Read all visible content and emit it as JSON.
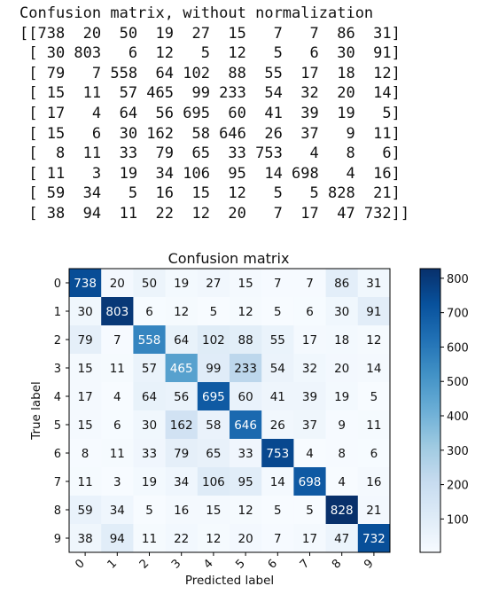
{
  "console": {
    "header": "Confusion matrix, without normalization",
    "lines": [
      "[[738  20  50  19  27  15   7   7  86  31]",
      " [ 30 803   6  12   5  12   5   6  30  91]",
      " [ 79   7 558  64 102  88  55  17  18  12]",
      " [ 15  11  57 465  99 233  54  32  20  14]",
      " [ 17   4  64  56 695  60  41  39  19   5]",
      " [ 15   6  30 162  58 646  26  37   9  11]",
      " [  8  11  33  79  65  33 753   4   8   6]",
      " [ 11   3  19  34 106  95  14 698   4  16]",
      " [ 59  34   5  16  15  12   5   5 828  21]",
      " [ 38  94  11  22  12  20   7  17  47 732]]"
    ]
  },
  "chart_data": {
    "type": "heatmap",
    "title": "Confusion matrix",
    "xlabel": "Predicted label",
    "ylabel": "True label",
    "x_categories": [
      "0",
      "1",
      "2",
      "3",
      "4",
      "5",
      "6",
      "7",
      "8",
      "9"
    ],
    "y_categories": [
      "0",
      "1",
      "2",
      "3",
      "4",
      "5",
      "6",
      "7",
      "8",
      "9"
    ],
    "values": [
      [
        738,
        20,
        50,
        19,
        27,
        15,
        7,
        7,
        86,
        31
      ],
      [
        30,
        803,
        6,
        12,
        5,
        12,
        5,
        6,
        30,
        91
      ],
      [
        79,
        7,
        558,
        64,
        102,
        88,
        55,
        17,
        18,
        12
      ],
      [
        15,
        11,
        57,
        465,
        99,
        233,
        54,
        32,
        20,
        14
      ],
      [
        17,
        4,
        64,
        56,
        695,
        60,
        41,
        39,
        19,
        5
      ],
      [
        15,
        6,
        30,
        162,
        58,
        646,
        26,
        37,
        9,
        11
      ],
      [
        8,
        11,
        33,
        79,
        65,
        33,
        753,
        4,
        8,
        6
      ],
      [
        11,
        3,
        19,
        34,
        106,
        95,
        14,
        698,
        4,
        16
      ],
      [
        59,
        34,
        5,
        16,
        15,
        12,
        5,
        5,
        828,
        21
      ],
      [
        38,
        94,
        11,
        22,
        12,
        20,
        7,
        17,
        47,
        732
      ]
    ],
    "colormap": "Blues",
    "color_range": [
      3,
      828
    ],
    "colorbar_ticks": [
      "100",
      "200",
      "300",
      "400",
      "500",
      "600",
      "700",
      "800"
    ],
    "colorbar_tick_values": [
      100,
      200,
      300,
      400,
      500,
      600,
      700,
      800
    ]
  }
}
